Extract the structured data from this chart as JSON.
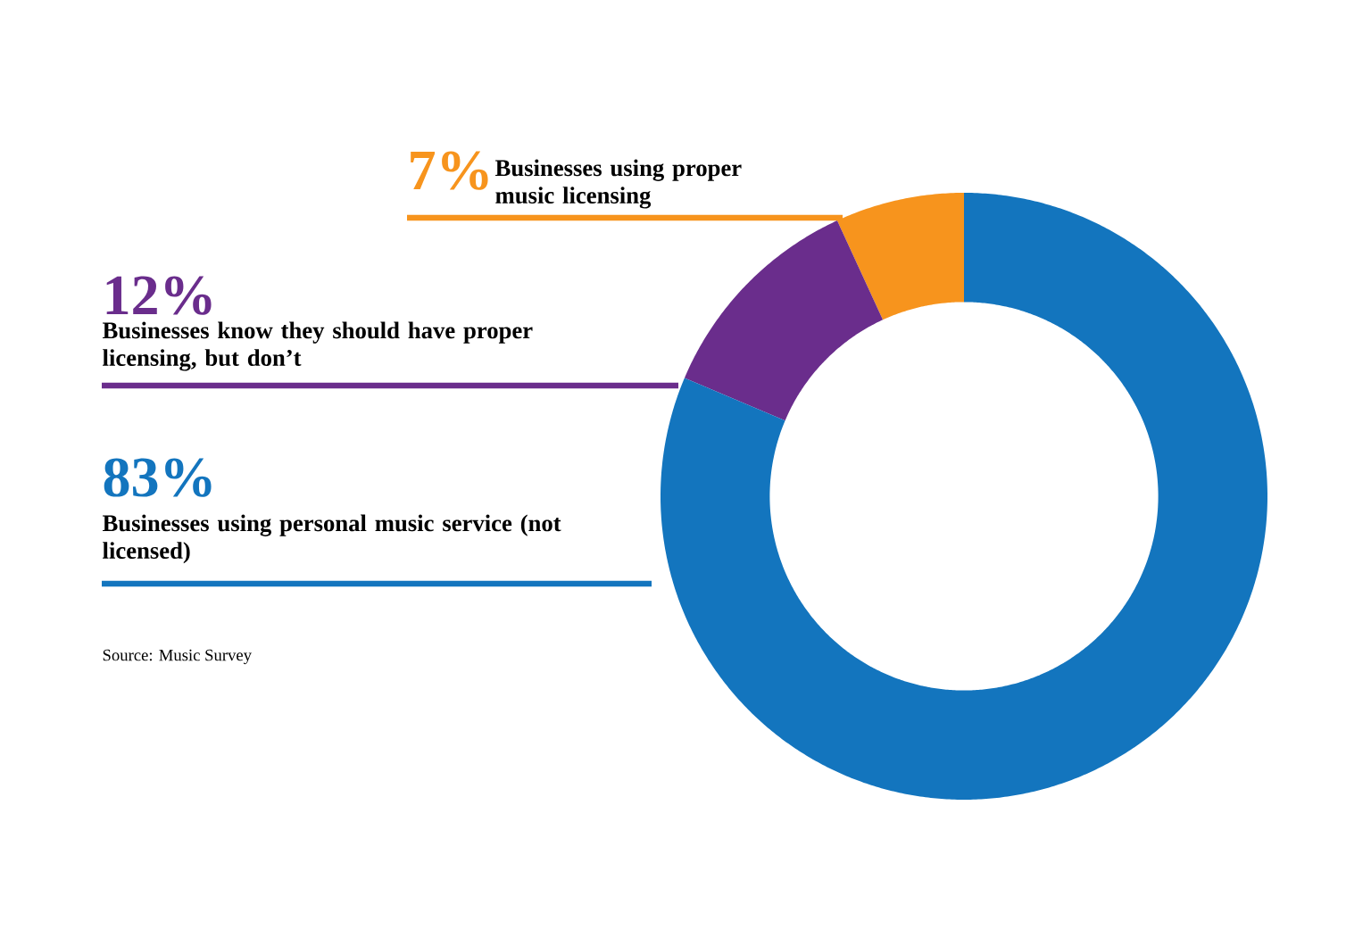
{
  "chart_data": {
    "type": "donut",
    "categories": [
      "Businesses using proper music licensing",
      "Businesses know they should have proper licensing, but don’t",
      "Businesses using personal music service (not licensed)"
    ],
    "values": [
      7,
      12,
      83
    ],
    "colors": [
      "#f7941d",
      "#6a2d8c",
      "#1375be"
    ],
    "value_labels": [
      "7%",
      "12%",
      "83%"
    ],
    "annotations": [
      "Source: Music Survey"
    ]
  }
}
